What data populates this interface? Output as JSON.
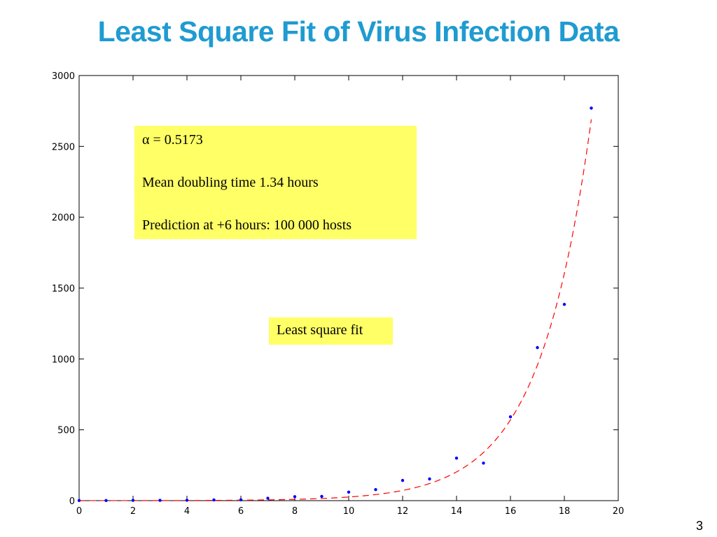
{
  "slide": {
    "title": "Least Square Fit of Virus Infection Data",
    "page_number": "3"
  },
  "annotations": {
    "alpha_line": "α = 0.5173",
    "doubling_line": "Mean doubling time 1.34 hours",
    "prediction_line": "Prediction at +6 hours: 100 000 hosts",
    "fit_label": "Least square fit"
  },
  "chart_data": {
    "type": "scatter",
    "title": "",
    "xlabel": "",
    "ylabel": "",
    "xlim": [
      0,
      20
    ],
    "ylim": [
      0,
      3000
    ],
    "xticks": [
      0,
      2,
      4,
      6,
      8,
      10,
      12,
      14,
      16,
      18,
      20
    ],
    "yticks": [
      0,
      500,
      1000,
      1500,
      2000,
      2500,
      3000
    ],
    "grid": false,
    "series": [
      {
        "type": "scatter",
        "color": "#0000ff",
        "x": [
          0,
          1,
          2,
          3,
          4,
          5,
          6,
          7,
          8,
          9,
          10,
          11,
          12,
          13,
          14,
          15,
          16,
          17,
          18,
          19
        ],
        "y": [
          1,
          1,
          2,
          2,
          3,
          5,
          6,
          17,
          28,
          30,
          60,
          78,
          143,
          153,
          300,
          265,
          592,
          1080,
          1385,
          2770
        ]
      },
      {
        "type": "line",
        "style": "dashed",
        "color": "#ff0000",
        "model": "exponential",
        "alpha": 0.5173,
        "x_range": [
          0,
          19
        ]
      }
    ]
  }
}
